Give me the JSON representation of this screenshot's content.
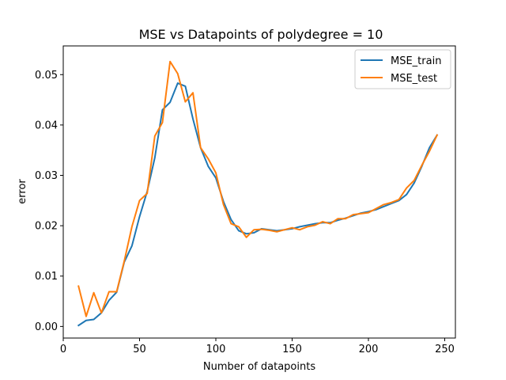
{
  "chart_data": {
    "type": "line",
    "title": "MSE vs Datapoints of polydegree = 10",
    "xlabel": "Number of datapoints",
    "ylabel": "error",
    "xlim": [
      0,
      257
    ],
    "ylim": [
      -0.0023,
      0.0557
    ],
    "xticks": [
      0,
      50,
      100,
      150,
      200,
      250
    ],
    "yticks": [
      0.0,
      0.01,
      0.02,
      0.03,
      0.04,
      0.05
    ],
    "xtick_labels": [
      "0",
      "50",
      "100",
      "150",
      "200",
      "250"
    ],
    "ytick_labels": [
      "0.00",
      "0.01",
      "0.02",
      "0.03",
      "0.04",
      "0.05"
    ],
    "grid": false,
    "legend_position": "top-right",
    "x": [
      10,
      15,
      20,
      25,
      30,
      35,
      40,
      45,
      50,
      55,
      60,
      65,
      70,
      75,
      80,
      85,
      90,
      95,
      100,
      105,
      110,
      115,
      120,
      125,
      130,
      135,
      140,
      145,
      150,
      155,
      160,
      165,
      170,
      175,
      180,
      185,
      190,
      195,
      200,
      205,
      210,
      215,
      220,
      225,
      230,
      235,
      240,
      245
    ],
    "series": [
      {
        "name": "MSE_train",
        "color": "#1f77b4",
        "values": [
          0.0002,
          0.0012,
          0.0014,
          0.0027,
          0.0052,
          0.0068,
          0.0128,
          0.016,
          0.0218,
          0.0268,
          0.0335,
          0.043,
          0.0445,
          0.0483,
          0.0477,
          0.0412,
          0.0355,
          0.0318,
          0.0295,
          0.0248,
          0.0212,
          0.019,
          0.0184,
          0.0186,
          0.0194,
          0.0192,
          0.019,
          0.0192,
          0.0194,
          0.0198,
          0.0201,
          0.0204,
          0.0206,
          0.0206,
          0.0211,
          0.0215,
          0.022,
          0.0225,
          0.0228,
          0.0232,
          0.0238,
          0.0244,
          0.025,
          0.0262,
          0.0285,
          0.0318,
          0.0355,
          0.038
        ]
      },
      {
        "name": "MSE_test",
        "color": "#ff7f0e",
        "values": [
          0.008,
          0.002,
          0.0067,
          0.0027,
          0.0069,
          0.0069,
          0.013,
          0.0198,
          0.025,
          0.0264,
          0.0378,
          0.0405,
          0.0526,
          0.0502,
          0.0446,
          0.0464,
          0.0355,
          0.0333,
          0.0305,
          0.0242,
          0.0204,
          0.0198,
          0.0177,
          0.0192,
          0.0193,
          0.0191,
          0.0188,
          0.0192,
          0.0196,
          0.0192,
          0.0198,
          0.0201,
          0.0208,
          0.0204,
          0.0214,
          0.0214,
          0.0222,
          0.0224,
          0.0226,
          0.0234,
          0.0242,
          0.0246,
          0.0252,
          0.0275,
          0.029,
          0.032,
          0.0348,
          0.038
        ]
      }
    ]
  }
}
